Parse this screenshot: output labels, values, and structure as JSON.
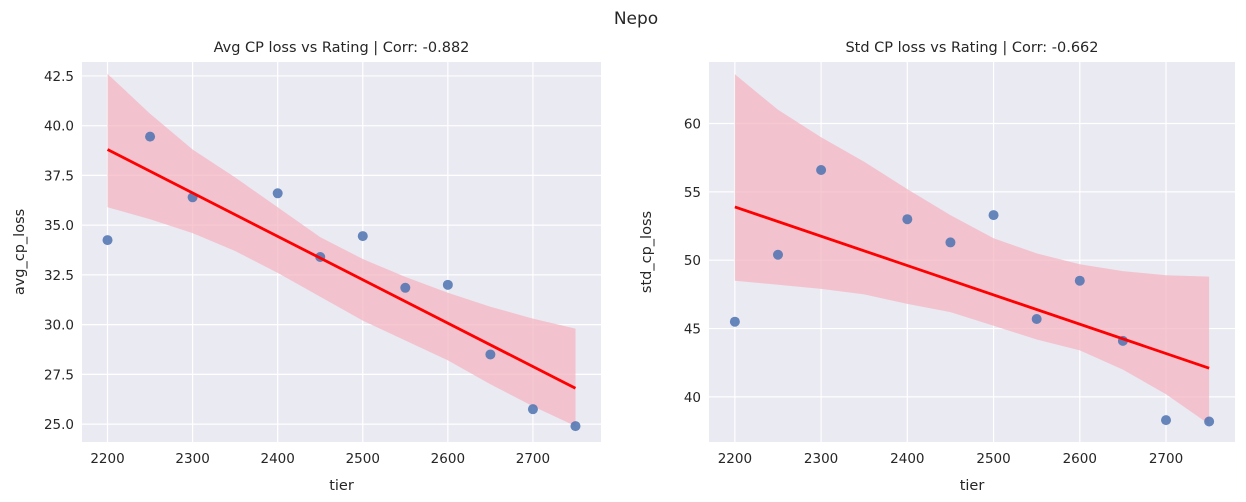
{
  "figure": {
    "suptitle": "Nepo"
  },
  "colors": {
    "background": "#eaeaf2",
    "grid": "#ffffff",
    "points": "#4c72b0",
    "regression_line": "#ff0000",
    "ci_band": "#f4b6c2"
  },
  "chart_data": [
    {
      "type": "scatter",
      "title": "Avg CP loss vs Rating | Corr: -0.882",
      "xlabel": "tier",
      "ylabel": "avg_cp_loss",
      "x": [
        2200,
        2250,
        2300,
        2400,
        2450,
        2500,
        2550,
        2600,
        2650,
        2700,
        2750
      ],
      "y": [
        34.25,
        39.45,
        36.4,
        36.6,
        33.4,
        34.45,
        31.85,
        32.0,
        28.5,
        25.75,
        24.9
      ],
      "xlim": [
        2170,
        2780
      ],
      "ylim": [
        24.1,
        43.2
      ],
      "xticks": [
        "2200",
        "2300",
        "2400",
        "2500",
        "2600",
        "2700"
      ],
      "yticks": [
        "25.0",
        "27.5",
        "30.0",
        "32.5",
        "35.0",
        "37.5",
        "40.0",
        "42.5"
      ],
      "regression": {
        "x": [
          2200,
          2750
        ],
        "y": [
          38.8,
          26.8
        ]
      },
      "ci_band": {
        "x": [
          2200,
          2250,
          2300,
          2350,
          2400,
          2450,
          2500,
          2550,
          2600,
          2650,
          2700,
          2750
        ],
        "upper": [
          42.6,
          40.6,
          38.8,
          37.4,
          35.9,
          34.4,
          33.3,
          32.4,
          31.6,
          30.9,
          30.3,
          29.8
        ],
        "lower": [
          35.9,
          35.3,
          34.6,
          33.7,
          32.6,
          31.4,
          30.2,
          29.2,
          28.2,
          27.0,
          25.9,
          24.9
        ]
      },
      "grid": true
    },
    {
      "type": "scatter",
      "title": "Std CP loss vs Rating | Corr: -0.662",
      "xlabel": "tier",
      "ylabel": "std_cp_loss",
      "x": [
        2200,
        2250,
        2300,
        2400,
        2450,
        2500,
        2550,
        2600,
        2650,
        2700,
        2750
      ],
      "y": [
        45.5,
        50.4,
        56.6,
        53.0,
        51.3,
        53.3,
        45.7,
        48.5,
        44.1,
        38.3,
        38.2
      ],
      "xlim": [
        2170,
        2780
      ],
      "ylim": [
        36.7,
        64.5
      ],
      "xticks": [
        "2200",
        "2300",
        "2400",
        "2500",
        "2600",
        "2700"
      ],
      "yticks": [
        "40",
        "45",
        "50",
        "55",
        "60"
      ],
      "regression": {
        "x": [
          2200,
          2750
        ],
        "y": [
          53.9,
          42.1
        ]
      },
      "ci_band": {
        "x": [
          2200,
          2250,
          2300,
          2350,
          2400,
          2450,
          2500,
          2550,
          2600,
          2650,
          2700,
          2750
        ],
        "upper": [
          63.6,
          61.0,
          59.0,
          57.2,
          55.2,
          53.3,
          51.6,
          50.5,
          49.7,
          49.2,
          48.9,
          48.8
        ],
        "lower": [
          48.5,
          48.2,
          47.9,
          47.5,
          46.8,
          46.2,
          45.2,
          44.2,
          43.4,
          42.0,
          40.2,
          38.0
        ]
      },
      "grid": true
    }
  ]
}
